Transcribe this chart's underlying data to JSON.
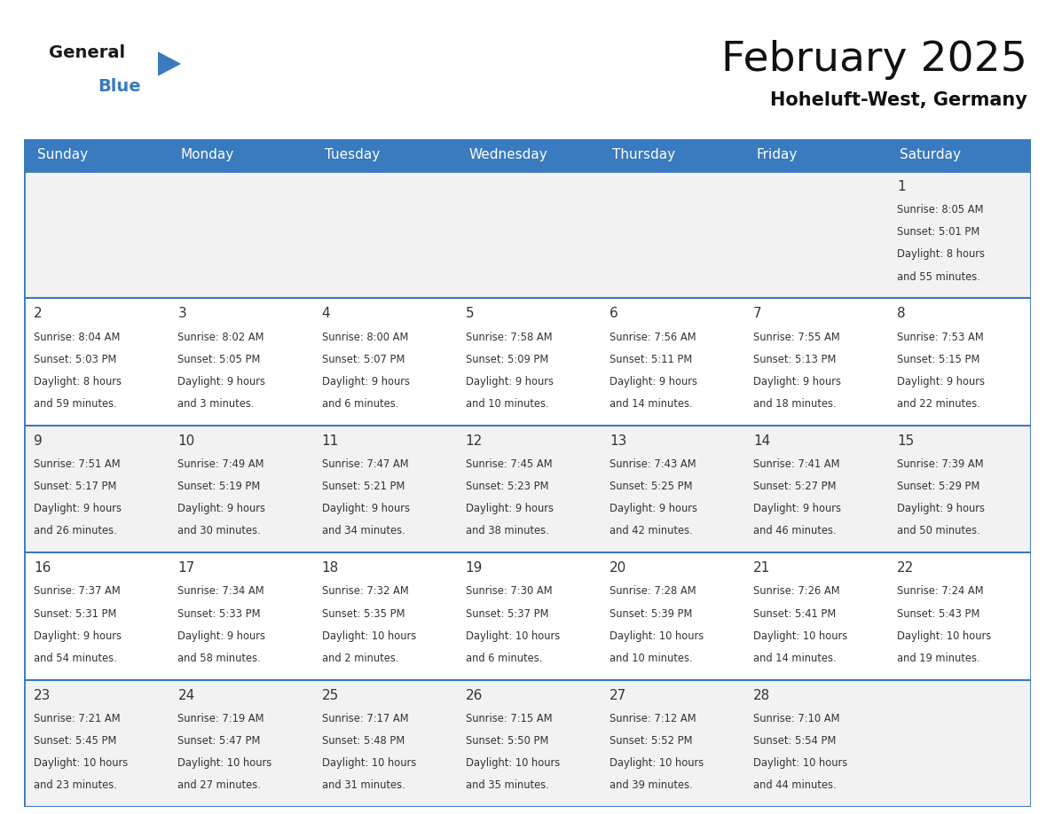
{
  "title": "February 2025",
  "subtitle": "Hoheluft-West, Germany",
  "header_color": "#3a7abf",
  "header_text_color": "#ffffff",
  "cell_bg_even": "#f2f2f2",
  "cell_bg_odd": "#ffffff",
  "border_color": "#3a7abf",
  "text_color": "#333333",
  "day_names": [
    "Sunday",
    "Monday",
    "Tuesday",
    "Wednesday",
    "Thursday",
    "Friday",
    "Saturday"
  ],
  "days": [
    {
      "day": 1,
      "col": 6,
      "row": 0,
      "sunrise": "8:05 AM",
      "sunset": "5:01 PM",
      "daylight": "8 hours and 55 minutes"
    },
    {
      "day": 2,
      "col": 0,
      "row": 1,
      "sunrise": "8:04 AM",
      "sunset": "5:03 PM",
      "daylight": "8 hours and 59 minutes"
    },
    {
      "day": 3,
      "col": 1,
      "row": 1,
      "sunrise": "8:02 AM",
      "sunset": "5:05 PM",
      "daylight": "9 hours and 3 minutes"
    },
    {
      "day": 4,
      "col": 2,
      "row": 1,
      "sunrise": "8:00 AM",
      "sunset": "5:07 PM",
      "daylight": "9 hours and 6 minutes"
    },
    {
      "day": 5,
      "col": 3,
      "row": 1,
      "sunrise": "7:58 AM",
      "sunset": "5:09 PM",
      "daylight": "9 hours and 10 minutes"
    },
    {
      "day": 6,
      "col": 4,
      "row": 1,
      "sunrise": "7:56 AM",
      "sunset": "5:11 PM",
      "daylight": "9 hours and 14 minutes"
    },
    {
      "day": 7,
      "col": 5,
      "row": 1,
      "sunrise": "7:55 AM",
      "sunset": "5:13 PM",
      "daylight": "9 hours and 18 minutes"
    },
    {
      "day": 8,
      "col": 6,
      "row": 1,
      "sunrise": "7:53 AM",
      "sunset": "5:15 PM",
      "daylight": "9 hours and 22 minutes"
    },
    {
      "day": 9,
      "col": 0,
      "row": 2,
      "sunrise": "7:51 AM",
      "sunset": "5:17 PM",
      "daylight": "9 hours and 26 minutes"
    },
    {
      "day": 10,
      "col": 1,
      "row": 2,
      "sunrise": "7:49 AM",
      "sunset": "5:19 PM",
      "daylight": "9 hours and 30 minutes"
    },
    {
      "day": 11,
      "col": 2,
      "row": 2,
      "sunrise": "7:47 AM",
      "sunset": "5:21 PM",
      "daylight": "9 hours and 34 minutes"
    },
    {
      "day": 12,
      "col": 3,
      "row": 2,
      "sunrise": "7:45 AM",
      "sunset": "5:23 PM",
      "daylight": "9 hours and 38 minutes"
    },
    {
      "day": 13,
      "col": 4,
      "row": 2,
      "sunrise": "7:43 AM",
      "sunset": "5:25 PM",
      "daylight": "9 hours and 42 minutes"
    },
    {
      "day": 14,
      "col": 5,
      "row": 2,
      "sunrise": "7:41 AM",
      "sunset": "5:27 PM",
      "daylight": "9 hours and 46 minutes"
    },
    {
      "day": 15,
      "col": 6,
      "row": 2,
      "sunrise": "7:39 AM",
      "sunset": "5:29 PM",
      "daylight": "9 hours and 50 minutes"
    },
    {
      "day": 16,
      "col": 0,
      "row": 3,
      "sunrise": "7:37 AM",
      "sunset": "5:31 PM",
      "daylight": "9 hours and 54 minutes"
    },
    {
      "day": 17,
      "col": 1,
      "row": 3,
      "sunrise": "7:34 AM",
      "sunset": "5:33 PM",
      "daylight": "9 hours and 58 minutes"
    },
    {
      "day": 18,
      "col": 2,
      "row": 3,
      "sunrise": "7:32 AM",
      "sunset": "5:35 PM",
      "daylight": "10 hours and 2 minutes"
    },
    {
      "day": 19,
      "col": 3,
      "row": 3,
      "sunrise": "7:30 AM",
      "sunset": "5:37 PM",
      "daylight": "10 hours and 6 minutes"
    },
    {
      "day": 20,
      "col": 4,
      "row": 3,
      "sunrise": "7:28 AM",
      "sunset": "5:39 PM",
      "daylight": "10 hours and 10 minutes"
    },
    {
      "day": 21,
      "col": 5,
      "row": 3,
      "sunrise": "7:26 AM",
      "sunset": "5:41 PM",
      "daylight": "10 hours and 14 minutes"
    },
    {
      "day": 22,
      "col": 6,
      "row": 3,
      "sunrise": "7:24 AM",
      "sunset": "5:43 PM",
      "daylight": "10 hours and 19 minutes"
    },
    {
      "day": 23,
      "col": 0,
      "row": 4,
      "sunrise": "7:21 AM",
      "sunset": "5:45 PM",
      "daylight": "10 hours and 23 minutes"
    },
    {
      "day": 24,
      "col": 1,
      "row": 4,
      "sunrise": "7:19 AM",
      "sunset": "5:47 PM",
      "daylight": "10 hours and 27 minutes"
    },
    {
      "day": 25,
      "col": 2,
      "row": 4,
      "sunrise": "7:17 AM",
      "sunset": "5:48 PM",
      "daylight": "10 hours and 31 minutes"
    },
    {
      "day": 26,
      "col": 3,
      "row": 4,
      "sunrise": "7:15 AM",
      "sunset": "5:50 PM",
      "daylight": "10 hours and 35 minutes"
    },
    {
      "day": 27,
      "col": 4,
      "row": 4,
      "sunrise": "7:12 AM",
      "sunset": "5:52 PM",
      "daylight": "10 hours and 39 minutes"
    },
    {
      "day": 28,
      "col": 5,
      "row": 4,
      "sunrise": "7:10 AM",
      "sunset": "5:54 PM",
      "daylight": "10 hours and 44 minutes"
    }
  ]
}
